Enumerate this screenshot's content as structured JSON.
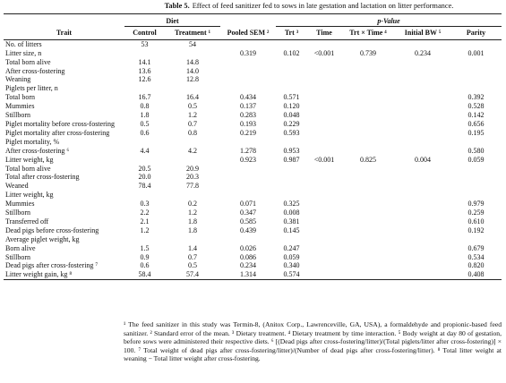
{
  "title": {
    "label": "Table 5.",
    "text": "Effect of feed sanitizer fed to sows in late gestation and lactation on litter performance."
  },
  "table": {
    "groups": {
      "diet": "Diet",
      "pvalue": "p-Value"
    },
    "columns": [
      "Trait",
      "Control",
      "Treatment ¹",
      "Pooled SEM ²",
      "Trt ³",
      "Time",
      "Trt × Time ⁴",
      "Initial BW ⁵",
      "Parity"
    ],
    "rows": [
      [
        "No. of litters",
        "53",
        "54",
        null,
        null,
        null,
        null,
        null,
        null
      ],
      [
        "Litter size, n",
        null,
        null,
        "0.319",
        "0.102",
        "<0.001",
        "0.739",
        "0.234",
        "0.001"
      ],
      [
        "Total born alive",
        "14.1",
        "14.8",
        null,
        null,
        null,
        null,
        null,
        null
      ],
      [
        "After cross-fostering",
        "13.6",
        "14.0",
        null,
        null,
        null,
        null,
        null,
        null
      ],
      [
        "Weaning",
        "12.6",
        "12.8",
        null,
        null,
        null,
        null,
        null,
        null
      ],
      [
        "Piglets per litter, n",
        null,
        null,
        null,
        null,
        null,
        null,
        null,
        null
      ],
      [
        "Total born",
        "16.7",
        "16.4",
        "0.434",
        "0.571",
        null,
        null,
        null,
        "0.392"
      ],
      [
        "Mummies",
        "0.8",
        "0.5",
        "0.137",
        "0.120",
        null,
        null,
        null,
        "0.528"
      ],
      [
        "Stillborn",
        "1.8",
        "1.2",
        "0.283",
        "0.048",
        null,
        null,
        null,
        "0.142"
      ],
      [
        "Piglet mortality before cross-fostering",
        "0.5",
        "0.7",
        "0.193",
        "0.229",
        null,
        null,
        null,
        "0.656"
      ],
      [
        "Piglet mortality after cross-fostering",
        "0.6",
        "0.8",
        "0.219",
        "0.593",
        null,
        null,
        null,
        "0.195"
      ],
      [
        "Piglet mortality, %",
        null,
        null,
        null,
        null,
        null,
        null,
        null,
        null
      ],
      [
        "After cross-fostering ⁶",
        "4.4",
        "4.2",
        "1.278",
        "0.953",
        null,
        null,
        null,
        "0.580"
      ],
      [
        "Litter weight, kg",
        null,
        null,
        "0.923",
        "0.987",
        "<0.001",
        "0.825",
        "0.004",
        "0.059"
      ],
      [
        "Total born alive",
        "20.5",
        "20.9",
        null,
        null,
        null,
        null,
        null,
        null
      ],
      [
        "Total after cross-fostering",
        "20.0",
        "20.3",
        null,
        null,
        null,
        null,
        null,
        null
      ],
      [
        "Weaned",
        "78.4",
        "77.8",
        null,
        null,
        null,
        null,
        null,
        null
      ],
      [
        "Litter weight, kg",
        null,
        null,
        null,
        null,
        null,
        null,
        null,
        null
      ],
      [
        "Mummies",
        "0.3",
        "0.2",
        "0.071",
        "0.325",
        null,
        null,
        null,
        "0.979"
      ],
      [
        "Stillborn",
        "2.2",
        "1.2",
        "0.347",
        "0.008",
        null,
        null,
        null,
        "0.259"
      ],
      [
        "Transferred off",
        "2.1",
        "1.8",
        "0.585",
        "0.381",
        null,
        null,
        null,
        "0.610"
      ],
      [
        "Dead pigs before cross-fostering",
        "1.2",
        "1.8",
        "0.439",
        "0.145",
        null,
        null,
        null,
        "0.192"
      ],
      [
        "Average piglet weight, kg",
        null,
        null,
        null,
        null,
        null,
        null,
        null,
        null
      ],
      [
        "Born alive",
        "1.5",
        "1.4",
        "0.026",
        "0.247",
        null,
        null,
        null,
        "0.679"
      ],
      [
        "Stillborn",
        "0.9",
        "0.7",
        "0.086",
        "0.059",
        null,
        null,
        null,
        "0.534"
      ],
      [
        "Dead pigs after cross-fostering ⁷",
        "0.6",
        "0.5",
        "0.234",
        "0.340",
        null,
        null,
        null,
        "0.820"
      ],
      [
        "Litter weight gain, kg ⁸",
        "58.4",
        "57.4",
        "1.314",
        "0.574",
        null,
        null,
        null,
        "0.408"
      ]
    ]
  },
  "footnote": "¹ The feed sanitizer in this study was Termin-8, (Anitox Corp., Lawrenceville, GA, USA), a formaldehyde and propionic-based feed sanitizer. ² Standard error of the mean. ³ Dietary treatment. ⁴ Dietary treatment by time interaction. ⁵ Body weight at day 80 of gestation, before sows were administered their respective diets. ⁶ [(Dead pigs after cross-fostering/litter)/(Total piglets/litter after cross-fostering)] × 100. ⁷ Total weight of dead pigs after cross-fostering/litter)/(Number of dead pigs after cross-fostering/litter). ⁸ Total litter weight at weaning − Total litter weight after cross-fostering."
}
